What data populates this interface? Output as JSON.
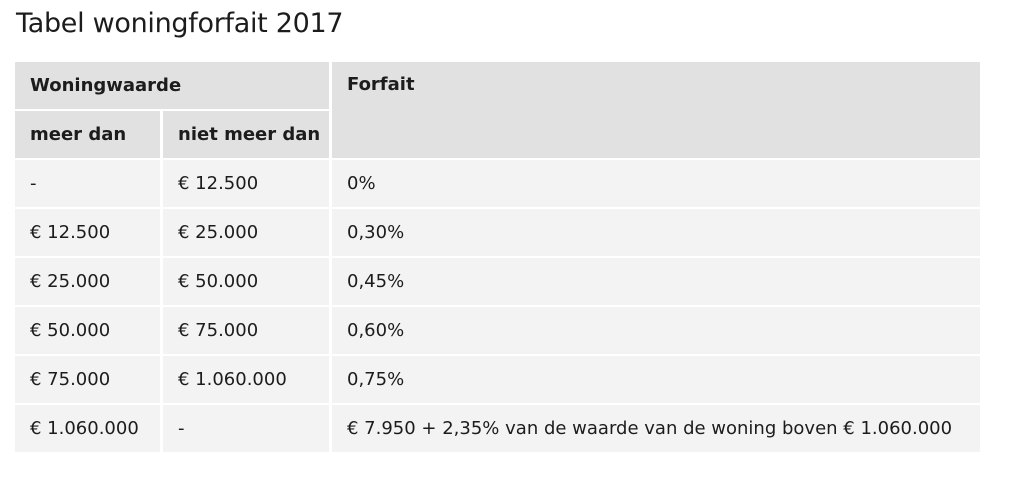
{
  "title": "Tabel woningforfait 2017",
  "table": {
    "header": {
      "group": "Woningwaarde",
      "forfait": "Forfait",
      "columns": [
        "meer dan",
        "niet meer dan"
      ]
    },
    "rows": [
      [
        "-",
        "€ 12.500",
        "0%"
      ],
      [
        "€ 12.500",
        "€ 25.000",
        "0,30%"
      ],
      [
        "€ 25.000",
        "€ 50.000",
        "0,45%"
      ],
      [
        "€ 50.000",
        "€ 75.000",
        "0,60%"
      ],
      [
        "€ 75.000",
        "€ 1.060.000",
        "0,75%"
      ],
      [
        "€ 1.060.000",
        "-",
        "€ 7.950 + 2,35% van de waarde van de woning boven € 1.060.000"
      ]
    ]
  }
}
